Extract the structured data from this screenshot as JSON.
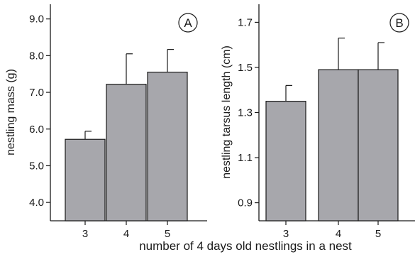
{
  "chart_data": [
    {
      "panel": "A",
      "type": "bar",
      "categories": [
        "3",
        "4",
        "5"
      ],
      "values": [
        5.72,
        7.22,
        7.55
      ],
      "error_upper": [
        0.22,
        0.83,
        0.62
      ],
      "ylabel": "nestling mass (g)",
      "ylim": [
        3.5,
        9.4
      ],
      "yticks": [
        "4.0",
        "5.0",
        "6.0",
        "7.0",
        "8.0",
        "9.0"
      ],
      "bar_color": "#a7a7ac"
    },
    {
      "panel": "B",
      "type": "bar",
      "categories": [
        "3",
        "4",
        "5"
      ],
      "values": [
        1.35,
        1.49,
        1.49
      ],
      "error_upper": [
        0.07,
        0.14,
        0.12
      ],
      "ylabel": "nestling tarsus length (cm)",
      "ylim": [
        0.82,
        1.78
      ],
      "yticks": [
        "0.9",
        "1.1",
        "1.3",
        "1.5",
        "1.7"
      ],
      "bar_color": "#a7a7ac"
    }
  ],
  "shared_xlabel": "number of 4 days old nestlings in a nest"
}
